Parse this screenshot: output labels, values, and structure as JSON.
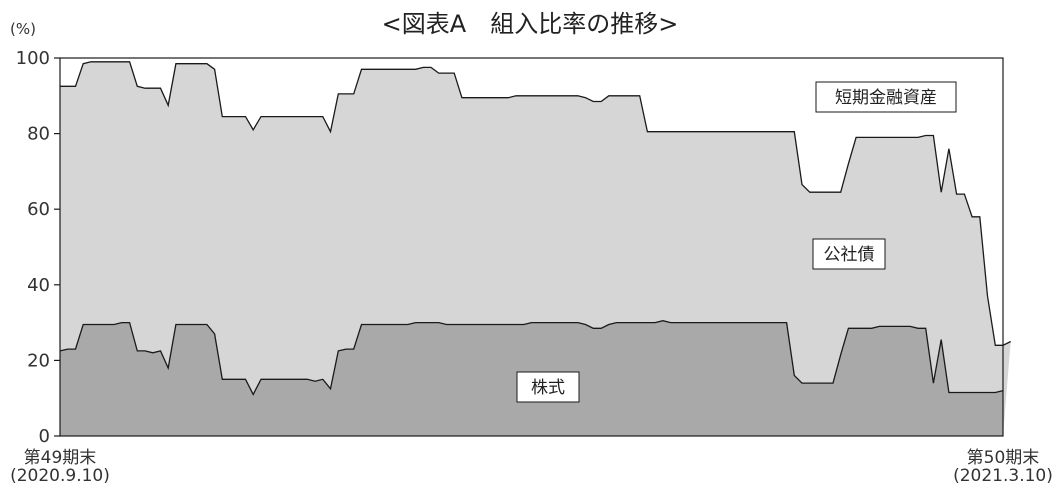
{
  "chart_data": {
    "type": "area",
    "title": "<図表A　組入比率の推移>",
    "y_unit": "(%)",
    "ylim": [
      0,
      100
    ],
    "y_ticks": [
      0,
      20,
      40,
      60,
      80,
      100
    ],
    "x_start_label": [
      "第49期末",
      "(2020.9.10)"
    ],
    "x_end_label": [
      "第50期末",
      "(2021.3.10)"
    ],
    "colors": {
      "stock": "#a9a9a9",
      "bond": "#d6d6d6",
      "short_term": "#ffffff",
      "line": "#1a1a1a"
    },
    "series": [
      {
        "name": "株式",
        "values": [
          22.5,
          23,
          23,
          29.5,
          29.5,
          29.5,
          29.5,
          29.5,
          30,
          30,
          22.5,
          22.5,
          22,
          22.5,
          18,
          29.5,
          29.5,
          29.5,
          29.5,
          29.5,
          27,
          15,
          15,
          15,
          15,
          11,
          15,
          15,
          15,
          15,
          15,
          15,
          15,
          14.5,
          15,
          12.5,
          22.5,
          23,
          23,
          29.5,
          29.5,
          29.5,
          29.5,
          29.5,
          29.5,
          29.5,
          30,
          30,
          30,
          30,
          29.5,
          29.5,
          29.5,
          29.5,
          29.5,
          29.5,
          29.5,
          29.5,
          29.5,
          29.5,
          29.5,
          30,
          30,
          30,
          30,
          30,
          30,
          30,
          29.5,
          28.5,
          28.5,
          29.5,
          30,
          30,
          30,
          30,
          30,
          30,
          30.5,
          30,
          30,
          30,
          30,
          30,
          30,
          30,
          30,
          30,
          30,
          30,
          30,
          30,
          30,
          30,
          30,
          16,
          14,
          14,
          14,
          14,
          14,
          21.5,
          28.5,
          28.5,
          28.5,
          28.5,
          29,
          29,
          29,
          29,
          29,
          28.5,
          28.5,
          14,
          25.5,
          11.5,
          11.5,
          11.5,
          11.5,
          11.5,
          11.5,
          11.5,
          12
        ]
      },
      {
        "name": "公社債",
        "values": [
          92.5,
          92.5,
          92.5,
          98.5,
          99,
          99,
          99,
          99,
          99,
          99,
          92.5,
          92,
          92,
          92,
          87.5,
          98.5,
          98.5,
          98.5,
          98.5,
          98.5,
          97,
          84.5,
          84.5,
          84.5,
          84.5,
          81,
          84.5,
          84.5,
          84.5,
          84.5,
          84.5,
          84.5,
          84.5,
          84.5,
          84.5,
          80.5,
          90.5,
          90.5,
          90.5,
          97,
          97,
          97,
          97,
          97,
          97,
          97,
          97,
          97.5,
          97.5,
          96,
          96,
          96,
          89.5,
          89.5,
          89.5,
          89.5,
          89.5,
          89.5,
          89.5,
          90,
          90,
          90,
          90,
          90,
          90,
          90,
          90,
          90,
          89.5,
          88.5,
          88.5,
          90,
          90,
          90,
          90,
          90,
          80.5,
          80.5,
          80.5,
          80.5,
          80.5,
          80.5,
          80.5,
          80.5,
          80.5,
          80.5,
          80.5,
          80.5,
          80.5,
          80.5,
          80.5,
          80.5,
          80.5,
          80.5,
          80.5,
          80.5,
          66.5,
          64.5,
          64.5,
          64.5,
          64.5,
          64.5,
          72,
          79,
          79,
          79,
          79,
          79,
          79,
          79,
          79,
          79,
          79.5,
          79.5,
          64.5,
          76,
          64,
          64,
          58,
          58,
          37,
          24,
          24,
          25
        ]
      },
      {
        "name": "短期金融資産",
        "values": [
          100
        ]
      }
    ],
    "labels": {
      "stock": "株式",
      "bond": "公社債",
      "short_term": "短期金融資産"
    }
  }
}
